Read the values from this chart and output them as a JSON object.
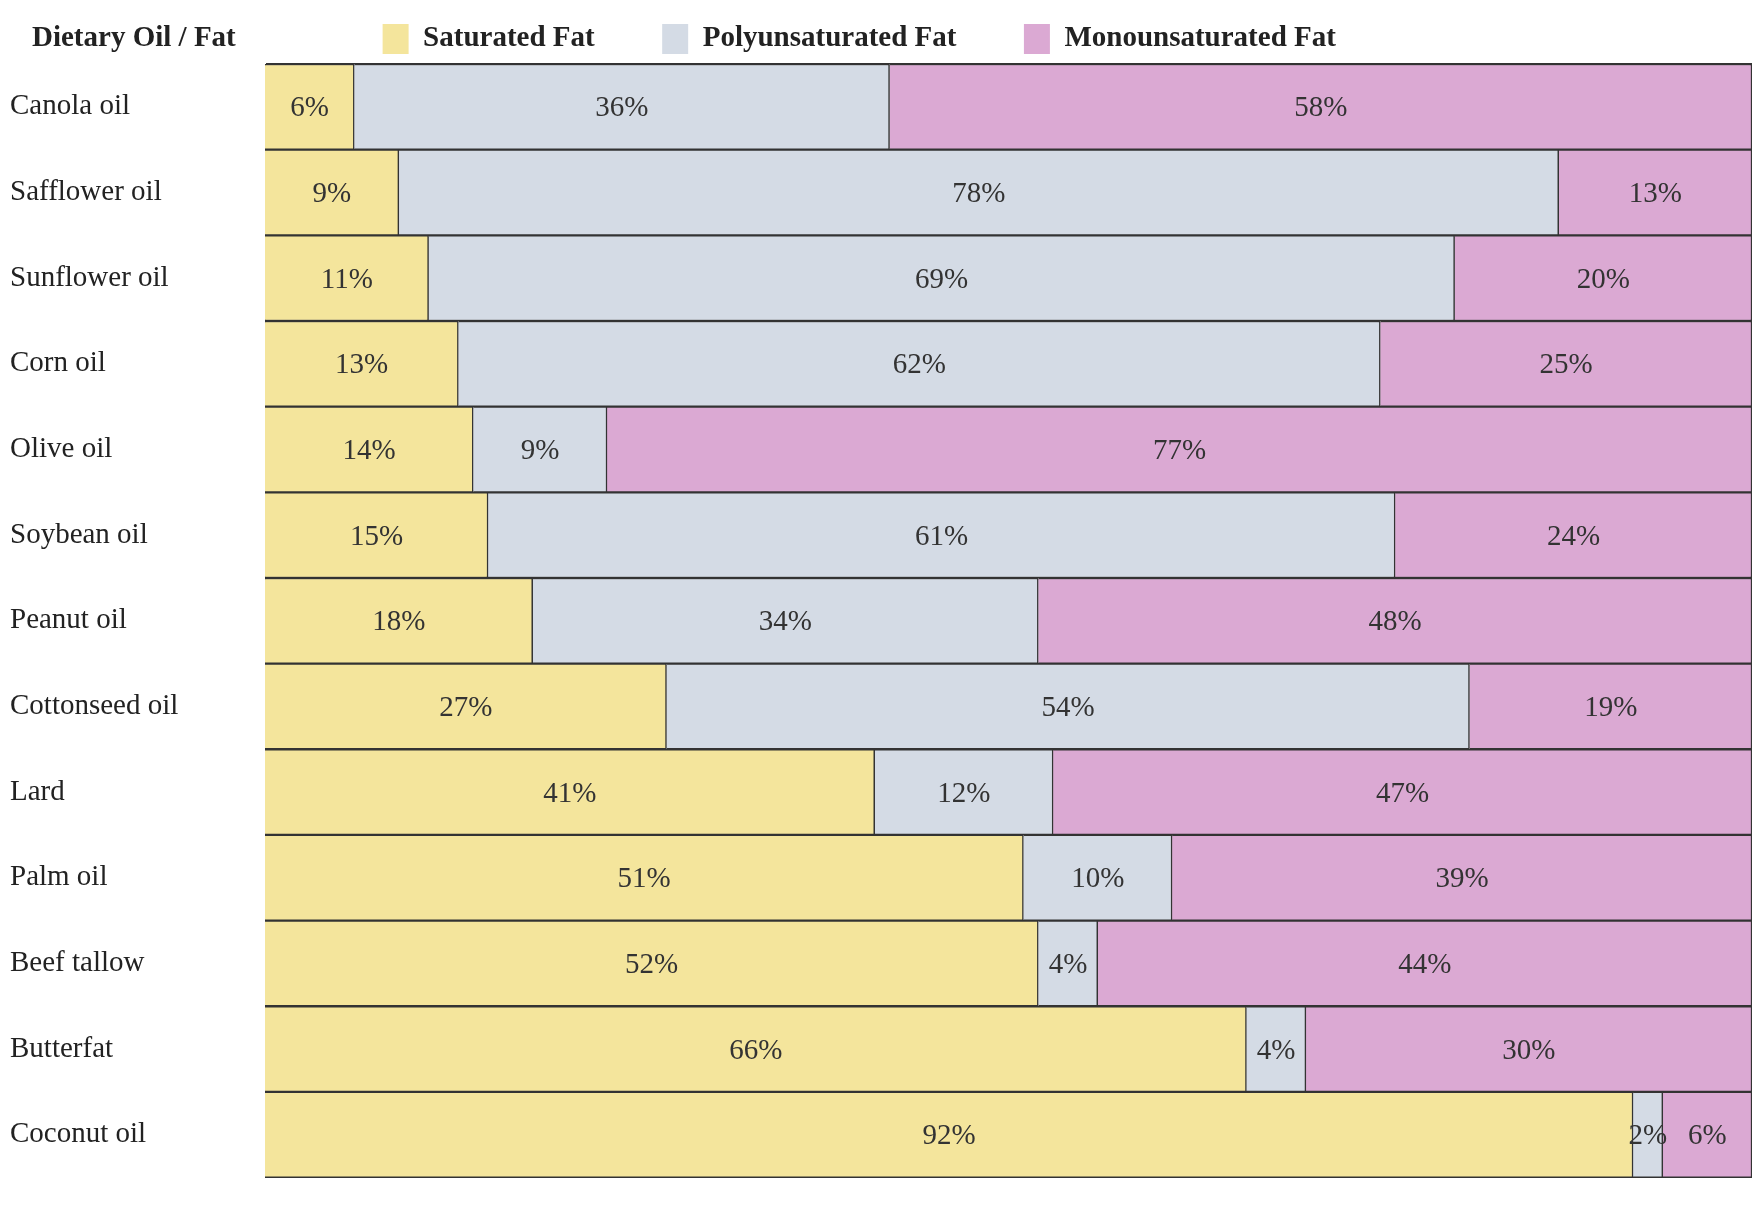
{
  "chart_data": {
    "type": "bar",
    "orientation": "horizontal",
    "stacked": true,
    "ylabel": "Dietary Oil / Fat",
    "categories": [
      "Canola oil",
      "Safflower oil",
      "Sunflower oil",
      "Corn oil",
      "Olive oil",
      "Soybean oil",
      "Peanut oil",
      "Cottonseed oil",
      "Lard",
      "Palm oil",
      "Beef tallow",
      "Butterfat",
      "Coconut oil"
    ],
    "series": [
      {
        "name": "Saturated Fat",
        "color": "#f4e59c",
        "values": [
          6,
          9,
          11,
          13,
          14,
          15,
          18,
          27,
          41,
          51,
          52,
          66,
          92
        ],
        "value_labels": [
          "6%",
          "9%",
          "11%",
          "13%",
          "14%",
          "15%",
          "18%",
          "27%",
          "41%",
          "51%",
          "52%",
          "66%",
          "92%"
        ]
      },
      {
        "name": "Polyunsaturated Fat",
        "color": "#d4dbe5",
        "values": [
          36,
          78,
          69,
          62,
          9,
          61,
          34,
          54,
          12,
          10,
          4,
          4,
          2
        ],
        "value_labels": [
          "36%",
          "78%",
          "69%",
          "62%",
          "9%",
          "61%",
          "34%",
          "54%",
          "12%",
          "10%",
          "4%",
          "4%",
          "2%"
        ]
      },
      {
        "name": "Monounsaturated Fat",
        "color": "#dba9d3",
        "values": [
          58,
          13,
          20,
          25,
          77,
          24,
          48,
          19,
          47,
          39,
          44,
          30,
          6
        ],
        "value_labels": [
          "58%",
          "13%",
          "20%",
          "25%",
          "77%",
          "24%",
          "48%",
          "19%",
          "47%",
          "39%",
          "44%",
          "30%",
          "6%"
        ]
      }
    ],
    "tick_labels": "y",
    "legend": "top"
  }
}
